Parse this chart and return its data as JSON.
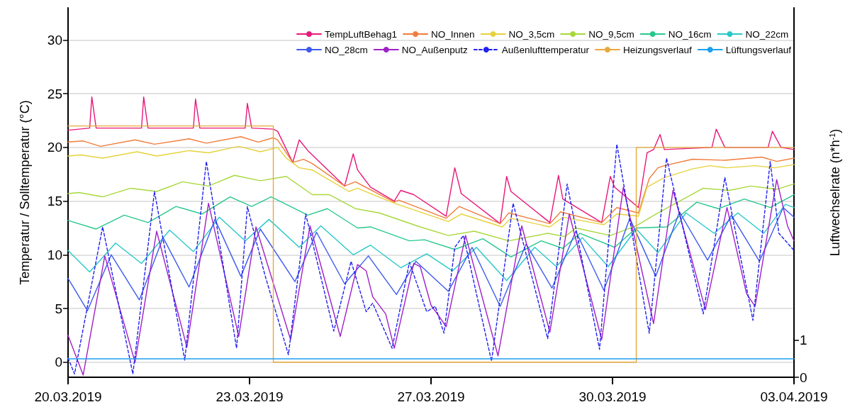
{
  "chart_data": {
    "type": "line",
    "xlabel": null,
    "ylabel": "Temperatur / Solltemperatur (°C)",
    "y2label": "Luftwechselrate (n*h$^{-1}$)",
    "xlim": [
      "2019-03-20T00:00",
      "2019-04-03T00:00"
    ],
    "xticks": [
      {
        "value": "2019-03-20T00:00",
        "label": "20.03.2019"
      },
      {
        "value": "2019-03-23T12:00",
        "label": "23.03.2019"
      },
      {
        "value": "2019-03-27T00:00",
        "label": "27.03.2019"
      },
      {
        "value": "2019-03-30T12:00",
        "label": "30.03.2019"
      },
      {
        "value": "2019-04-03T00:00",
        "label": "03.04.2019"
      }
    ],
    "ylim": [
      -1.4,
      33
    ],
    "yticks": [
      0,
      5,
      10,
      15,
      20,
      25,
      30
    ],
    "y2lim": [
      0,
      10
    ],
    "y2ticks": [
      0,
      1
    ],
    "grid": "y",
    "legend": "top right",
    "marker": "none",
    "line_style": "solid",
    "series": [
      {
        "name": "TempLuftBehag1",
        "color": "#e8177a",
        "x": [
          "2019-03-20T00:00",
          "2019-03-20T10:00",
          "2019-03-20T11:00",
          "2019-03-20T13:00",
          "2019-03-21T10:00",
          "2019-03-21T11:00",
          "2019-03-21T13:00",
          "2019-03-22T10:00",
          "2019-03-22T11:00",
          "2019-03-22T13:00",
          "2019-03-23T10:00",
          "2019-03-23T11:00",
          "2019-03-23T13:00",
          "2019-03-23T23:00",
          "2019-03-24T01:00",
          "2019-03-24T08:00",
          "2019-03-24T11:00",
          "2019-03-24T15:00",
          "2019-03-25T08:00",
          "2019-03-25T12:00",
          "2019-03-25T14:00",
          "2019-03-25T20:00",
          "2019-03-26T07:00",
          "2019-03-26T10:00",
          "2019-03-26T16:00",
          "2019-03-27T07:00",
          "2019-03-27T11:00",
          "2019-03-27T14:00",
          "2019-03-28T08:00",
          "2019-03-28T11:00",
          "2019-03-28T13:00",
          "2019-03-29T07:00",
          "2019-03-29T11:00",
          "2019-03-29T13:00",
          "2019-03-30T07:00",
          "2019-03-30T11:00",
          "2019-03-30T13:00",
          "2019-03-31T00:00",
          "2019-03-31T04:00",
          "2019-03-31T07:00",
          "2019-03-31T10:00",
          "2019-03-31T12:00",
          "2019-04-01T10:00",
          "2019-04-01T12:00",
          "2019-04-01T16:00",
          "2019-04-02T12:00",
          "2019-04-02T14:00",
          "2019-04-02T18:00",
          "2019-04-03T00:00"
        ],
        "values": [
          21.6,
          21.8,
          24.7,
          21.8,
          21.8,
          24.7,
          21.8,
          21.8,
          24.5,
          21.8,
          21.8,
          24.1,
          21.8,
          21.7,
          21.5,
          18.6,
          20.7,
          19.7,
          16.4,
          19.4,
          17.9,
          16.3,
          15,
          16,
          15.6,
          13.6,
          18.1,
          15.7,
          12.9,
          17.3,
          15.9,
          13,
          17.4,
          15.2,
          13,
          17.3,
          16.3,
          14.4,
          19.5,
          19.8,
          21.2,
          19.8,
          20,
          21.7,
          20,
          20,
          21.5,
          20,
          19.8
        ]
      },
      {
        "name": "NO_Innen",
        "color": "#f07d3c",
        "x": [
          "2019-03-20T00:00",
          "2019-03-20T07:00",
          "2019-03-20T15:00",
          "2019-03-21T07:00",
          "2019-03-21T16:00",
          "2019-03-22T08:00",
          "2019-03-22T16:00",
          "2019-03-23T08:00",
          "2019-03-23T16:00",
          "2019-03-23T23:00",
          "2019-03-24T01:00",
          "2019-03-24T08:00",
          "2019-03-24T13:00",
          "2019-03-24T17:00",
          "2019-03-25T08:00",
          "2019-03-25T13:00",
          "2019-03-26T07:00",
          "2019-03-26T09:00",
          "2019-03-27T07:00",
          "2019-03-27T13:00",
          "2019-03-28T08:00",
          "2019-03-28T12:00",
          "2019-03-29T07:00",
          "2019-03-29T12:00",
          "2019-03-30T07:00",
          "2019-03-30T14:00",
          "2019-03-31T00:00",
          "2019-03-31T05:00",
          "2019-03-31T09:00",
          "2019-03-31T12:00",
          "2019-04-01T01:00",
          "2019-04-01T16:00",
          "2019-04-02T09:00",
          "2019-04-02T16:00",
          "2019-04-03T00:00"
        ],
        "values": [
          20.5,
          20.6,
          20.1,
          20.7,
          20.3,
          20.8,
          20.4,
          21,
          20.5,
          20.9,
          20.7,
          18.6,
          18.9,
          18.5,
          16.4,
          16.8,
          14.9,
          15.1,
          13.4,
          14.5,
          12.9,
          13.9,
          12.9,
          14,
          13,
          14.4,
          13.9,
          17.1,
          18.1,
          18.3,
          18.9,
          18.8,
          19.1,
          18.7,
          19
        ]
      },
      {
        "name": "NO_3,5cm",
        "color": "#e6d23c",
        "x": [
          "2019-03-20T00:00",
          "2019-03-20T06:00",
          "2019-03-20T16:00",
          "2019-03-21T08:00",
          "2019-03-21T17:00",
          "2019-03-22T08:00",
          "2019-03-22T17:00",
          "2019-03-23T07:00",
          "2019-03-23T17:00",
          "2019-03-24T01:00",
          "2019-03-24T05:00",
          "2019-03-24T11:00",
          "2019-03-24T17:00",
          "2019-03-25T10:00",
          "2019-03-25T14:00",
          "2019-03-26T07:00",
          "2019-03-27T08:00",
          "2019-03-27T14:00",
          "2019-03-28T09:00",
          "2019-03-28T13:00",
          "2019-03-29T07:00",
          "2019-03-29T13:00",
          "2019-03-30T08:00",
          "2019-03-30T14:00",
          "2019-03-31T00:00",
          "2019-03-31T04:00",
          "2019-03-31T12:00",
          "2019-04-01T01:00",
          "2019-04-01T09:00",
          "2019-04-01T17:00",
          "2019-04-02T06:00",
          "2019-04-02T15:00",
          "2019-04-03T00:00"
        ],
        "values": [
          19.2,
          19.3,
          19,
          19.6,
          19.2,
          19.7,
          19.5,
          20.1,
          19.6,
          20,
          19,
          18.1,
          17.9,
          15.9,
          16.2,
          14.8,
          13.1,
          13.8,
          12.6,
          13.4,
          12.6,
          13.5,
          12.8,
          13.8,
          13.6,
          16.3,
          17.2,
          18,
          18.3,
          18.1,
          18.3,
          18.1,
          18.4
        ]
      },
      {
        "name": "NO_9,5cm",
        "color": "#a8d83c",
        "x": [
          "2019-03-20T00:00",
          "2019-03-20T05:00",
          "2019-03-20T16:00",
          "2019-03-21T05:00",
          "2019-03-21T17:00",
          "2019-03-22T05:00",
          "2019-03-22T17:00",
          "2019-03-23T05:00",
          "2019-03-23T17:00",
          "2019-03-24T05:00",
          "2019-03-24T17:00",
          "2019-03-25T01:00",
          "2019-03-25T13:00",
          "2019-03-26T00:00",
          "2019-03-26T19:00",
          "2019-03-27T08:00",
          "2019-03-27T20:00",
          "2019-03-28T12:00",
          "2019-03-29T06:00",
          "2019-03-29T14:00",
          "2019-03-29T19:00",
          "2019-03-30T11:00",
          "2019-03-30T23:00",
          "2019-03-31T09:00",
          "2019-04-01T06:00",
          "2019-04-01T18:00",
          "2019-04-02T04:00",
          "2019-04-02T16:00",
          "2019-04-03T00:00"
        ],
        "values": [
          15.7,
          15.8,
          15.4,
          16.2,
          15.9,
          16.8,
          16.4,
          17.4,
          16.9,
          17.3,
          15.6,
          15.6,
          14.3,
          13.9,
          12.6,
          11.8,
          12.2,
          11.3,
          12,
          11.7,
          12.5,
          11.8,
          12.7,
          13.9,
          16.2,
          16,
          16.4,
          16.1,
          16.6
        ]
      },
      {
        "name": "NO_16cm",
        "color": "#28c88c",
        "x": [
          "2019-03-20T00:00",
          "2019-03-20T13:00",
          "2019-03-21T02:00",
          "2019-03-21T13:00",
          "2019-03-22T02:00",
          "2019-03-22T14:00",
          "2019-03-23T03:00",
          "2019-03-23T13:00",
          "2019-03-23T22:00",
          "2019-03-24T15:00",
          "2019-03-25T00:00",
          "2019-03-25T14:00",
          "2019-03-25T20:00",
          "2019-03-26T14:00",
          "2019-03-26T21:00",
          "2019-03-27T11:00",
          "2019-03-28T00:00",
          "2019-03-28T13:00",
          "2019-03-29T03:00",
          "2019-03-29T13:00",
          "2019-03-29T21:00",
          "2019-03-30T13:00",
          "2019-03-30T23:00",
          "2019-03-31T13:00",
          "2019-04-01T03:00",
          "2019-04-01T13:00",
          "2019-04-02T01:00",
          "2019-04-02T13:00",
          "2019-04-03T00:00"
        ],
        "values": [
          13.2,
          12.4,
          13.7,
          13,
          14.5,
          13.8,
          15.4,
          14.5,
          15.4,
          13.7,
          14.3,
          12.5,
          12.6,
          11.3,
          11.4,
          10.5,
          11.5,
          9.8,
          11.3,
          10.6,
          12,
          10.7,
          12.5,
          12.6,
          14.9,
          14.3,
          15.2,
          14.4,
          15.6
        ]
      },
      {
        "name": "NO_22cm",
        "color": "#28c8c8",
        "x": [
          "2019-03-20T00:00",
          "2019-03-20T10:00",
          "2019-03-20T22:00",
          "2019-03-21T10:00",
          "2019-03-21T23:00",
          "2019-03-22T10:00",
          "2019-03-22T22:00",
          "2019-03-23T10:00",
          "2019-03-23T21:00",
          "2019-03-24T11:00",
          "2019-03-24T21:00",
          "2019-03-25T12:00",
          "2019-03-25T20:00",
          "2019-03-26T10:00",
          "2019-03-26T22:00",
          "2019-03-27T10:00",
          "2019-03-27T21:00",
          "2019-03-28T11:00",
          "2019-03-29T00:00",
          "2019-03-29T10:00",
          "2019-03-29T22:00",
          "2019-03-30T10:00",
          "2019-03-30T23:00",
          "2019-03-31T09:00",
          "2019-03-31T22:00",
          "2019-04-01T11:00",
          "2019-04-01T22:00",
          "2019-04-02T10:00",
          "2019-04-02T20:00",
          "2019-04-03T00:00"
        ],
        "values": [
          10.4,
          8.4,
          11.1,
          9.2,
          12.3,
          10.3,
          13.5,
          11.3,
          13.3,
          10.7,
          12.7,
          10,
          10.9,
          8.8,
          10.1,
          8.5,
          10.7,
          7.6,
          10.7,
          8.9,
          11.6,
          8.9,
          12.4,
          10.2,
          13.9,
          12,
          13.9,
          12,
          14.7,
          14.4
        ]
      },
      {
        "name": "NO_28cm",
        "color": "#3c5af0",
        "x": [
          "2019-03-20T00:00",
          "2019-03-20T09:00",
          "2019-03-20T20:00",
          "2019-03-21T09:00",
          "2019-03-21T20:00",
          "2019-03-22T08:00",
          "2019-03-22T20:00",
          "2019-03-23T08:00",
          "2019-03-23T17:00",
          "2019-03-24T09:00",
          "2019-03-24T19:00",
          "2019-03-25T08:00",
          "2019-03-25T19:00",
          "2019-03-26T08:00",
          "2019-03-26T17:00",
          "2019-03-27T08:00",
          "2019-03-27T19:00",
          "2019-03-28T08:00",
          "2019-03-28T20:00",
          "2019-03-29T08:00",
          "2019-03-29T19:00",
          "2019-03-30T08:00",
          "2019-03-30T20:00",
          "2019-03-31T08:00",
          "2019-03-31T19:00",
          "2019-04-01T08:00",
          "2019-04-01T19:00",
          "2019-04-02T08:00",
          "2019-04-02T19:00",
          "2019-04-03T00:00"
        ],
        "values": [
          7.8,
          4.8,
          10,
          5.8,
          11.6,
          7,
          13.3,
          8,
          12.4,
          7.5,
          12.1,
          7.3,
          9.9,
          6.3,
          9.4,
          6.6,
          10.7,
          5.2,
          11,
          6.9,
          12.2,
          6.7,
          13.4,
          8,
          14,
          9.5,
          13.7,
          9.4,
          14.4,
          13.5
        ]
      },
      {
        "name": "NO_Außenputz",
        "color": "#a020c8",
        "x": [
          "2019-03-20T00:00",
          "2019-03-20T07:00",
          "2019-03-20T17:00",
          "2019-03-21T07:00",
          "2019-03-21T17:00",
          "2019-03-22T07:00",
          "2019-03-22T17:00",
          "2019-03-23T07:00",
          "2019-03-23T15:00",
          "2019-03-24T07:00",
          "2019-03-24T16:00",
          "2019-03-25T06:00",
          "2019-03-25T14:00",
          "2019-03-25T18:00",
          "2019-03-25T21:00",
          "2019-03-26T03:00",
          "2019-03-26T07:00",
          "2019-03-26T16:00",
          "2019-03-26T19:00",
          "2019-03-27T00:00",
          "2019-03-27T04:00",
          "2019-03-27T07:00",
          "2019-03-27T16:00",
          "2019-03-28T07:00",
          "2019-03-28T18:00",
          "2019-03-29T07:00",
          "2019-03-29T16:00",
          "2019-03-30T07:00",
          "2019-03-30T17:00",
          "2019-03-31T07:00",
          "2019-03-31T16:00",
          "2019-04-01T07:00",
          "2019-04-01T17:00",
          "2019-04-02T02:00",
          "2019-04-02T06:00",
          "2019-04-02T16:00",
          "2019-04-02T21:00",
          "2019-04-03T00:00"
        ],
        "values": [
          2.5,
          -1.2,
          9.9,
          0,
          12.2,
          1.4,
          14.8,
          2.4,
          12.6,
          2.1,
          12.7,
          2.4,
          9.1,
          8.5,
          6.1,
          4.5,
          1.3,
          9.2,
          8.9,
          5.3,
          4.2,
          3.3,
          11.8,
          0.6,
          12.7,
          2.8,
          13.8,
          2.1,
          16.3,
          3.6,
          16,
          4.9,
          14.4,
          6.4,
          5.2,
          17,
          12.7,
          11.3
        ]
      },
      {
        "name": "Außenlufttemperatur",
        "color": "#2020f0",
        "line_style": "dashed",
        "x": [
          "2019-03-20T00:00",
          "2019-03-20T03:00",
          "2019-03-20T16:00",
          "2019-03-21T06:00",
          "2019-03-21T16:00",
          "2019-03-22T06:00",
          "2019-03-22T16:00",
          "2019-03-23T06:00",
          "2019-03-23T11:00",
          "2019-03-23T19:00",
          "2019-03-24T06:00",
          "2019-03-24T14:00",
          "2019-03-25T03:00",
          "2019-03-25T11:00",
          "2019-03-25T18:00",
          "2019-03-25T21:00",
          "2019-03-26T06:00",
          "2019-03-26T14:00",
          "2019-03-26T22:00",
          "2019-03-27T02:00",
          "2019-03-27T06:00",
          "2019-03-27T11:00",
          "2019-03-27T15:00",
          "2019-03-28T04:00",
          "2019-03-28T14:00",
          "2019-03-29T06:00",
          "2019-03-29T15:00",
          "2019-03-30T06:00",
          "2019-03-30T14:00",
          "2019-03-31T05:00",
          "2019-03-31T13:00",
          "2019-04-01T06:00",
          "2019-04-01T16:00",
          "2019-04-02T05:00",
          "2019-04-02T13:00",
          "2019-04-02T17:00",
          "2019-04-02T21:00",
          "2019-04-03T00:00"
        ],
        "values": [
          0.4,
          -1.1,
          12.6,
          -1.1,
          15.9,
          0.2,
          18.7,
          1.3,
          14.5,
          8.2,
          0.7,
          13.8,
          2.9,
          9.4,
          4.7,
          5.5,
          1.3,
          9.3,
          4.7,
          5.2,
          2.7,
          10.7,
          11.8,
          0.1,
          14.8,
          2.2,
          16.6,
          1.2,
          20.3,
          2.7,
          19,
          4.5,
          17.2,
          3.9,
          18.7,
          12,
          11.1,
          10.4
        ]
      },
      {
        "name": "Heizungsverlauf",
        "color": "#e8a83c",
        "x": [
          "2019-03-20T00:00",
          "2019-03-23T23:00",
          "2019-03-23T23:00",
          "2019-03-30T23:00",
          "2019-03-30T23:00",
          "2019-04-03T00:00"
        ],
        "values": [
          22,
          22,
          0,
          0,
          20,
          20
        ]
      },
      {
        "name": "Lüftungsverlauf",
        "color": "#1ea0f0",
        "axis": "y2",
        "x": [
          "2019-03-20T00:00",
          "2019-04-03T00:00"
        ],
        "values": [
          0.5,
          0.5
        ]
      }
    ]
  }
}
